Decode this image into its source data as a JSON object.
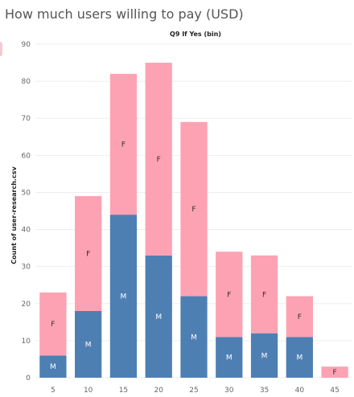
{
  "title": "How much users willing to pay (USD)",
  "chart_data": {
    "type": "bar",
    "stacked": true,
    "title": "",
    "xlabel": "Q9 If Yes (bin)",
    "ylabel": "Count of user-research.csv",
    "categories": [
      "5",
      "10",
      "15",
      "20",
      "25",
      "30",
      "35",
      "40",
      "45"
    ],
    "series": [
      {
        "name": "M",
        "color": "#4e7fb3",
        "label_color": "#ffffff",
        "values": [
          6,
          18,
          44,
          33,
          22,
          11,
          12,
          11,
          0
        ]
      },
      {
        "name": "F",
        "color": "#fda2b2",
        "label_color": "#333333",
        "values": [
          17,
          31,
          38,
          52,
          47,
          23,
          21,
          11,
          3
        ]
      }
    ],
    "ylim": [
      0,
      90
    ],
    "yticks": [
      0,
      10,
      20,
      30,
      40,
      50,
      60,
      70,
      80,
      90
    ],
    "grid": true
  }
}
